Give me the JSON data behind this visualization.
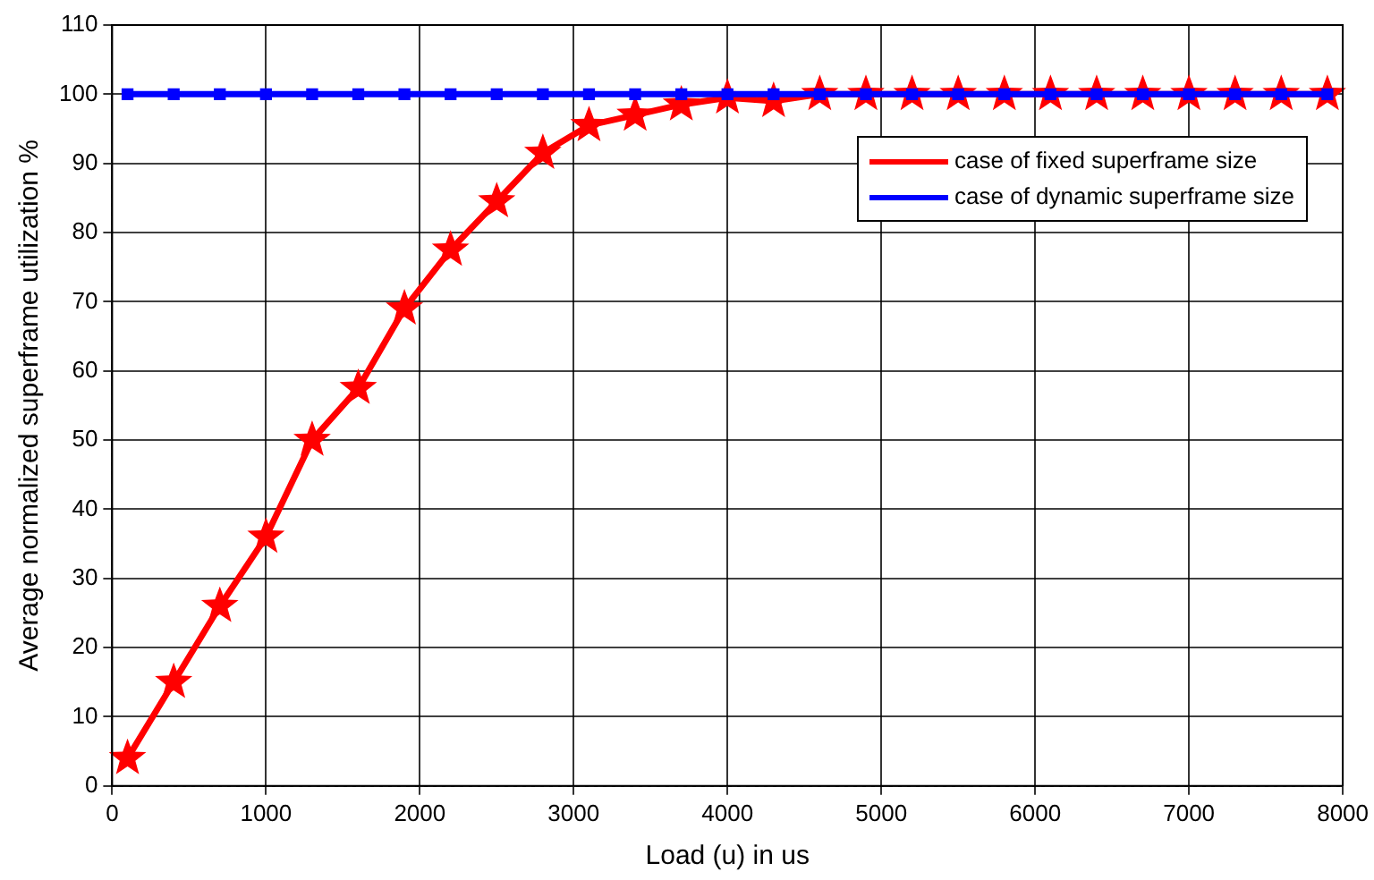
{
  "chart_data": {
    "type": "line",
    "xlabel": "Load (u) in us",
    "ylabel": "Average normalized superframe utilization %",
    "x": [
      100,
      400,
      700,
      1000,
      1300,
      1600,
      1900,
      2200,
      2500,
      2800,
      3100,
      3400,
      3700,
      4000,
      4300,
      4600,
      4900,
      5200,
      5500,
      5800,
      6100,
      6400,
      6700,
      7000,
      7300,
      7600,
      7900
    ],
    "series": [
      {
        "name": "case of fixed superframe size",
        "color": "#ff0000",
        "marker": "star",
        "values": [
          4,
          15,
          26,
          36,
          50,
          57.5,
          69,
          77.5,
          84.5,
          91.5,
          95.5,
          97,
          98.5,
          99.5,
          99,
          100,
          100,
          100,
          100,
          100,
          100,
          100,
          100,
          100,
          100,
          100,
          100
        ]
      },
      {
        "name": "case of dynamic superframe size",
        "color": "#0000ff",
        "marker": "square",
        "values": [
          100,
          100,
          100,
          100,
          100,
          100,
          100,
          100,
          100,
          100,
          100,
          100,
          100,
          100,
          100,
          100,
          100,
          100,
          100,
          100,
          100,
          100,
          100,
          100,
          100,
          100,
          100
        ]
      }
    ],
    "xlim": [
      0,
      8000
    ],
    "xticks": [
      0,
      1000,
      2000,
      3000,
      4000,
      5000,
      6000,
      7000,
      8000
    ],
    "ylim": [
      0,
      110
    ],
    "yticks": [
      0,
      10,
      20,
      30,
      40,
      50,
      60,
      70,
      80,
      90,
      100,
      110
    ],
    "grid": true,
    "legend": "top right",
    "line_style": "solid"
  }
}
